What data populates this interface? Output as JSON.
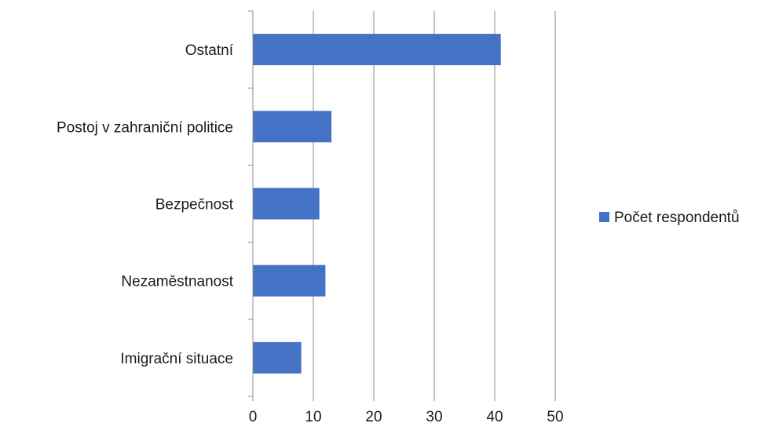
{
  "chart_data": {
    "type": "bar",
    "orientation": "horizontal",
    "categories": [
      "Ostatní",
      "Postoj v zahraniční politice",
      "Bezpečnost",
      "Nezaměstnanost",
      "Imigrační situace"
    ],
    "series": [
      {
        "name": "Počet respondentů",
        "values": [
          41,
          13,
          11,
          12,
          8
        ]
      }
    ],
    "xlim": [
      0,
      50
    ],
    "xticks": [
      0,
      10,
      20,
      30,
      40,
      50
    ],
    "grid": "vertical",
    "legend": "right",
    "title": "",
    "xlabel": "",
    "ylabel": "",
    "colors": {
      "bar": "#4472c4",
      "grid": "#8c8c8c",
      "axis": "#8c8c8c"
    }
  }
}
